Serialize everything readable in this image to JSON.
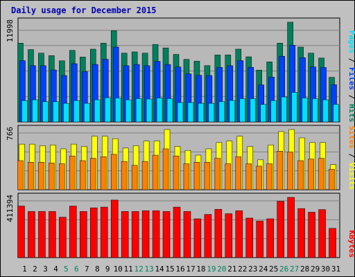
{
  "title": "Daily usage for December 2015",
  "colors": {
    "background": "#C0C0C0",
    "plot_bg": "#B8B8B8",
    "title": "#0000B0",
    "hits": "#00805C",
    "files": "#0040FF",
    "pages": "#00E0FF",
    "visits": "#FFFF00",
    "sites": "#FF8000",
    "kbytes": "#FF0000",
    "weekend_label": "#00805C",
    "weekday_label": "#000000",
    "grid": "#808080"
  },
  "chart_data": [
    {
      "type": "bar",
      "panel": "hits-files-pages",
      "max_label": "11998",
      "legend": [
        "Pages",
        "Files",
        "Hits"
      ],
      "ylim": [
        0,
        11998
      ],
      "categories": [
        "1",
        "2",
        "3",
        "4",
        "5",
        "6",
        "7",
        "8",
        "9",
        "10",
        "11",
        "12",
        "13",
        "14",
        "15",
        "16",
        "17",
        "18",
        "19",
        "20",
        "21",
        "22",
        "23",
        "24",
        "25",
        "26",
        "27",
        "28",
        "29",
        "30",
        "31"
      ],
      "series": [
        {
          "name": "Hits",
          "values": [
            9470,
            8700,
            8270,
            7970,
            7350,
            8600,
            7800,
            8750,
            9470,
            10970,
            8270,
            8420,
            8270,
            9320,
            8900,
            8120,
            7520,
            7300,
            6770,
            8050,
            8050,
            8750,
            7830,
            6230,
            7220,
            9470,
            11998,
            9000,
            8270,
            7680,
            5360
          ]
        },
        {
          "name": "Files",
          "values": [
            7370,
            6760,
            6760,
            6250,
            5580,
            7000,
            6050,
            6910,
            7540,
            9000,
            6760,
            6910,
            6760,
            7280,
            6910,
            6610,
            5780,
            5600,
            5580,
            6560,
            6760,
            7370,
            6560,
            4450,
            5390,
            7900,
            9230,
            7730,
            6610,
            6550,
            4480
          ]
        },
        {
          "name": "Pages",
          "values": [
            2570,
            2660,
            2430,
            2430,
            2240,
            2570,
            2240,
            2660,
            2910,
            2880,
            2660,
            2800,
            2750,
            2880,
            2800,
            2330,
            2330,
            2240,
            2240,
            2430,
            2580,
            2800,
            2800,
            2100,
            2570,
            3000,
            3550,
            2880,
            2800,
            2660,
            2100
          ]
        }
      ]
    },
    {
      "type": "bar",
      "panel": "visits-sites",
      "max_label": "766",
      "legend": [
        "Sites",
        "Visits"
      ],
      "ylim": [
        0,
        766
      ],
      "categories": [
        "1",
        "2",
        "3",
        "4",
        "5",
        "6",
        "7",
        "8",
        "9",
        "10",
        "11",
        "12",
        "13",
        "14",
        "15",
        "16",
        "17",
        "18",
        "19",
        "20",
        "21",
        "22",
        "23",
        "24",
        "25",
        "26",
        "27",
        "28",
        "29",
        "30",
        "31"
      ],
      "series": [
        {
          "name": "Visits",
          "values": [
            580,
            580,
            560,
            570,
            520,
            580,
            550,
            680,
            680,
            650,
            530,
            560,
            620,
            620,
            780,
            550,
            500,
            440,
            520,
            600,
            620,
            680,
            550,
            380,
            570,
            740,
            780,
            660,
            600,
            600,
            320
          ]
        },
        {
          "name": "Sites",
          "values": [
            370,
            350,
            350,
            340,
            330,
            430,
            370,
            400,
            420,
            450,
            360,
            310,
            360,
            440,
            520,
            430,
            330,
            350,
            350,
            400,
            330,
            420,
            330,
            300,
            330,
            490,
            480,
            370,
            390,
            400,
            260
          ]
        }
      ]
    },
    {
      "type": "bar",
      "panel": "kbytes",
      "max_label": "411394",
      "legend": [
        "KBytes"
      ],
      "ylim": [
        0,
        411394
      ],
      "categories": [
        "1",
        "2",
        "3",
        "4",
        "5",
        "6",
        "7",
        "8",
        "9",
        "10",
        "11",
        "12",
        "13",
        "14",
        "15",
        "16",
        "17",
        "18",
        "19",
        "20",
        "21",
        "22",
        "23",
        "24",
        "25",
        "26",
        "27",
        "28",
        "29",
        "30",
        "31"
      ],
      "series": [
        {
          "name": "KBytes",
          "values": [
            352000,
            315000,
            315000,
            315000,
            276000,
            352000,
            315000,
            340000,
            345000,
            393000,
            315000,
            315000,
            320000,
            320000,
            315000,
            345000,
            315000,
            265000,
            295000,
            330000,
            300000,
            320000,
            270000,
            250000,
            265000,
            385000,
            415000,
            335000,
            310000,
            328000,
            200000
          ]
        }
      ]
    }
  ],
  "weekend_days": [
    5,
    6,
    12,
    13,
    19,
    20,
    26,
    27
  ]
}
